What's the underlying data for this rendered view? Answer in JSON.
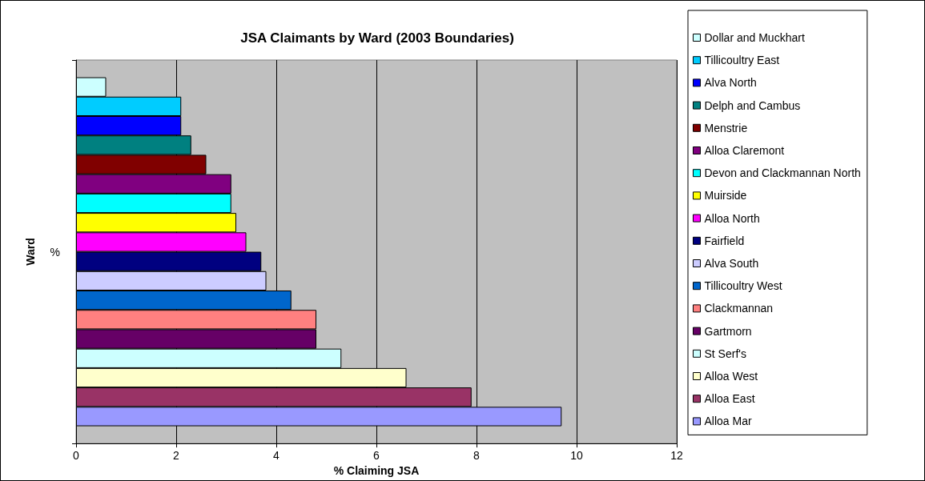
{
  "chart_data": {
    "type": "bar",
    "orientation": "horizontal",
    "title": "JSA Claimants by Ward (2003 Boundaries)",
    "xlabel": "% Claiming JSA",
    "ylabel": "Ward",
    "categories": [
      "%"
    ],
    "series": [
      {
        "name": "Dollar and Muckhart",
        "color": "#ccffff",
        "values": [
          0.6
        ]
      },
      {
        "name": "Tillicoultry East",
        "color": "#00ccff",
        "values": [
          2.1
        ]
      },
      {
        "name": "Alva North",
        "color": "#0000ff",
        "values": [
          2.1
        ]
      },
      {
        "name": "Delph and Cambus",
        "color": "#008080",
        "values": [
          2.3
        ]
      },
      {
        "name": "Menstrie",
        "color": "#800000",
        "values": [
          2.6
        ]
      },
      {
        "name": "Alloa Claremont",
        "color": "#800080",
        "values": [
          3.1
        ]
      },
      {
        "name": "Devon and Clackmannan North",
        "color": "#00ffff",
        "values": [
          3.1
        ]
      },
      {
        "name": "Muirside",
        "color": "#ffff00",
        "values": [
          3.2
        ]
      },
      {
        "name": "Alloa North",
        "color": "#ff00ff",
        "values": [
          3.4
        ]
      },
      {
        "name": "Fairfield",
        "color": "#000080",
        "values": [
          3.7
        ]
      },
      {
        "name": "Alva South",
        "color": "#ccccff",
        "values": [
          3.8
        ]
      },
      {
        "name": "Tillicoultry West",
        "color": "#0066cc",
        "values": [
          4.3
        ]
      },
      {
        "name": "Clackmannan",
        "color": "#ff8080",
        "values": [
          4.8
        ]
      },
      {
        "name": "Gartmorn",
        "color": "#660066",
        "values": [
          4.8
        ]
      },
      {
        "name": "St Serf's",
        "color": "#ccffff",
        "values": [
          5.3
        ]
      },
      {
        "name": "Alloa West",
        "color": "#ffffcc",
        "values": [
          6.6
        ]
      },
      {
        "name": "Alloa East",
        "color": "#993366",
        "values": [
          7.9
        ]
      },
      {
        "name": "Alloa Mar",
        "color": "#9999ff",
        "values": [
          9.7
        ]
      }
    ],
    "xlim": [
      0,
      12
    ],
    "xticks": [
      0,
      2,
      4,
      6,
      8,
      10,
      12
    ],
    "grid": "x",
    "legend": "right"
  }
}
